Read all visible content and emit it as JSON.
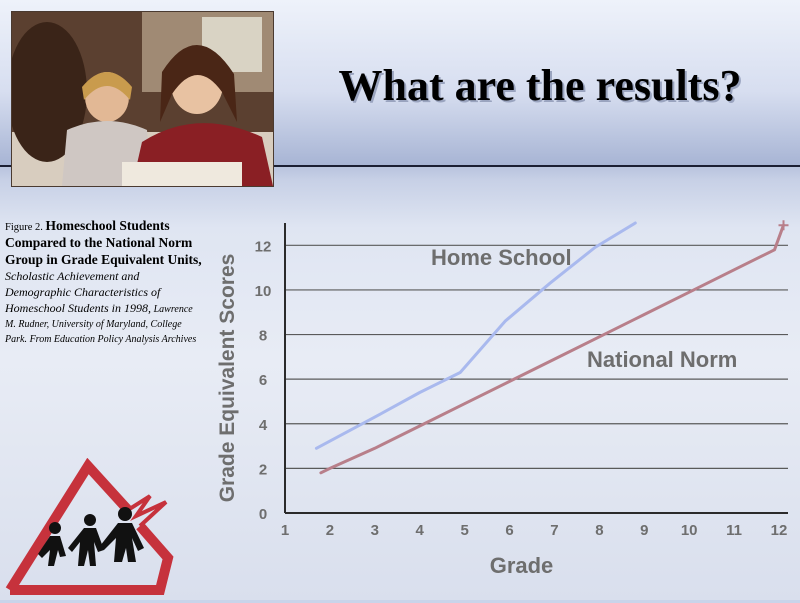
{
  "slide": {
    "title": "What are the results?"
  },
  "caption": {
    "figure_label": "Figure 2.",
    "figure_title": "Homeschool Students Compared to the National Norm Group in Grade Equivalent Units",
    "sep": ",",
    "source_title": "Scholastic Achievement and Demographic Characteristics of Homeschool Students in 1998",
    "author_line": "Lawrence M. Rudner, University of Maryland, College Park.",
    "source_line": "From Education Policy Analysis Archives"
  },
  "colors": {
    "home_school": "#a9b9ee",
    "national_norm": "#b87f8a",
    "axis": "#2b2b2b",
    "grid": "#5a5a5a",
    "label_gray": "#6e6e6e",
    "logo_red": "#c6323c"
  },
  "chart_data": {
    "type": "line",
    "xlabel": "Grade",
    "ylabel": "Grade Equivalent Scores",
    "xlim": [
      1,
      12.2
    ],
    "ylim": [
      0,
      13
    ],
    "x_ticks": [
      1,
      2,
      3,
      4,
      5,
      6,
      7,
      8,
      9,
      10,
      11,
      12
    ],
    "y_ticks": [
      0,
      2,
      4,
      6,
      8,
      10,
      12
    ],
    "grid": "horizontal",
    "series": [
      {
        "name": "Home School",
        "color_key": "home_school",
        "x": [
          1.7,
          3,
          4,
          4.9,
          5.9,
          6.9,
          7.9,
          8.8
        ],
        "y": [
          2.9,
          4.3,
          5.4,
          6.3,
          8.6,
          10.3,
          11.9,
          13
        ]
      },
      {
        "name": "National Norm",
        "color_key": "national_norm",
        "x": [
          1.8,
          2,
          3,
          4,
          5,
          6,
          7,
          8,
          9,
          10,
          11,
          11.9,
          12.1
        ],
        "y": [
          1.8,
          2.0,
          2.9,
          3.9,
          4.9,
          5.9,
          6.9,
          7.9,
          8.9,
          9.9,
          10.9,
          11.8,
          12.9
        ]
      }
    ]
  }
}
